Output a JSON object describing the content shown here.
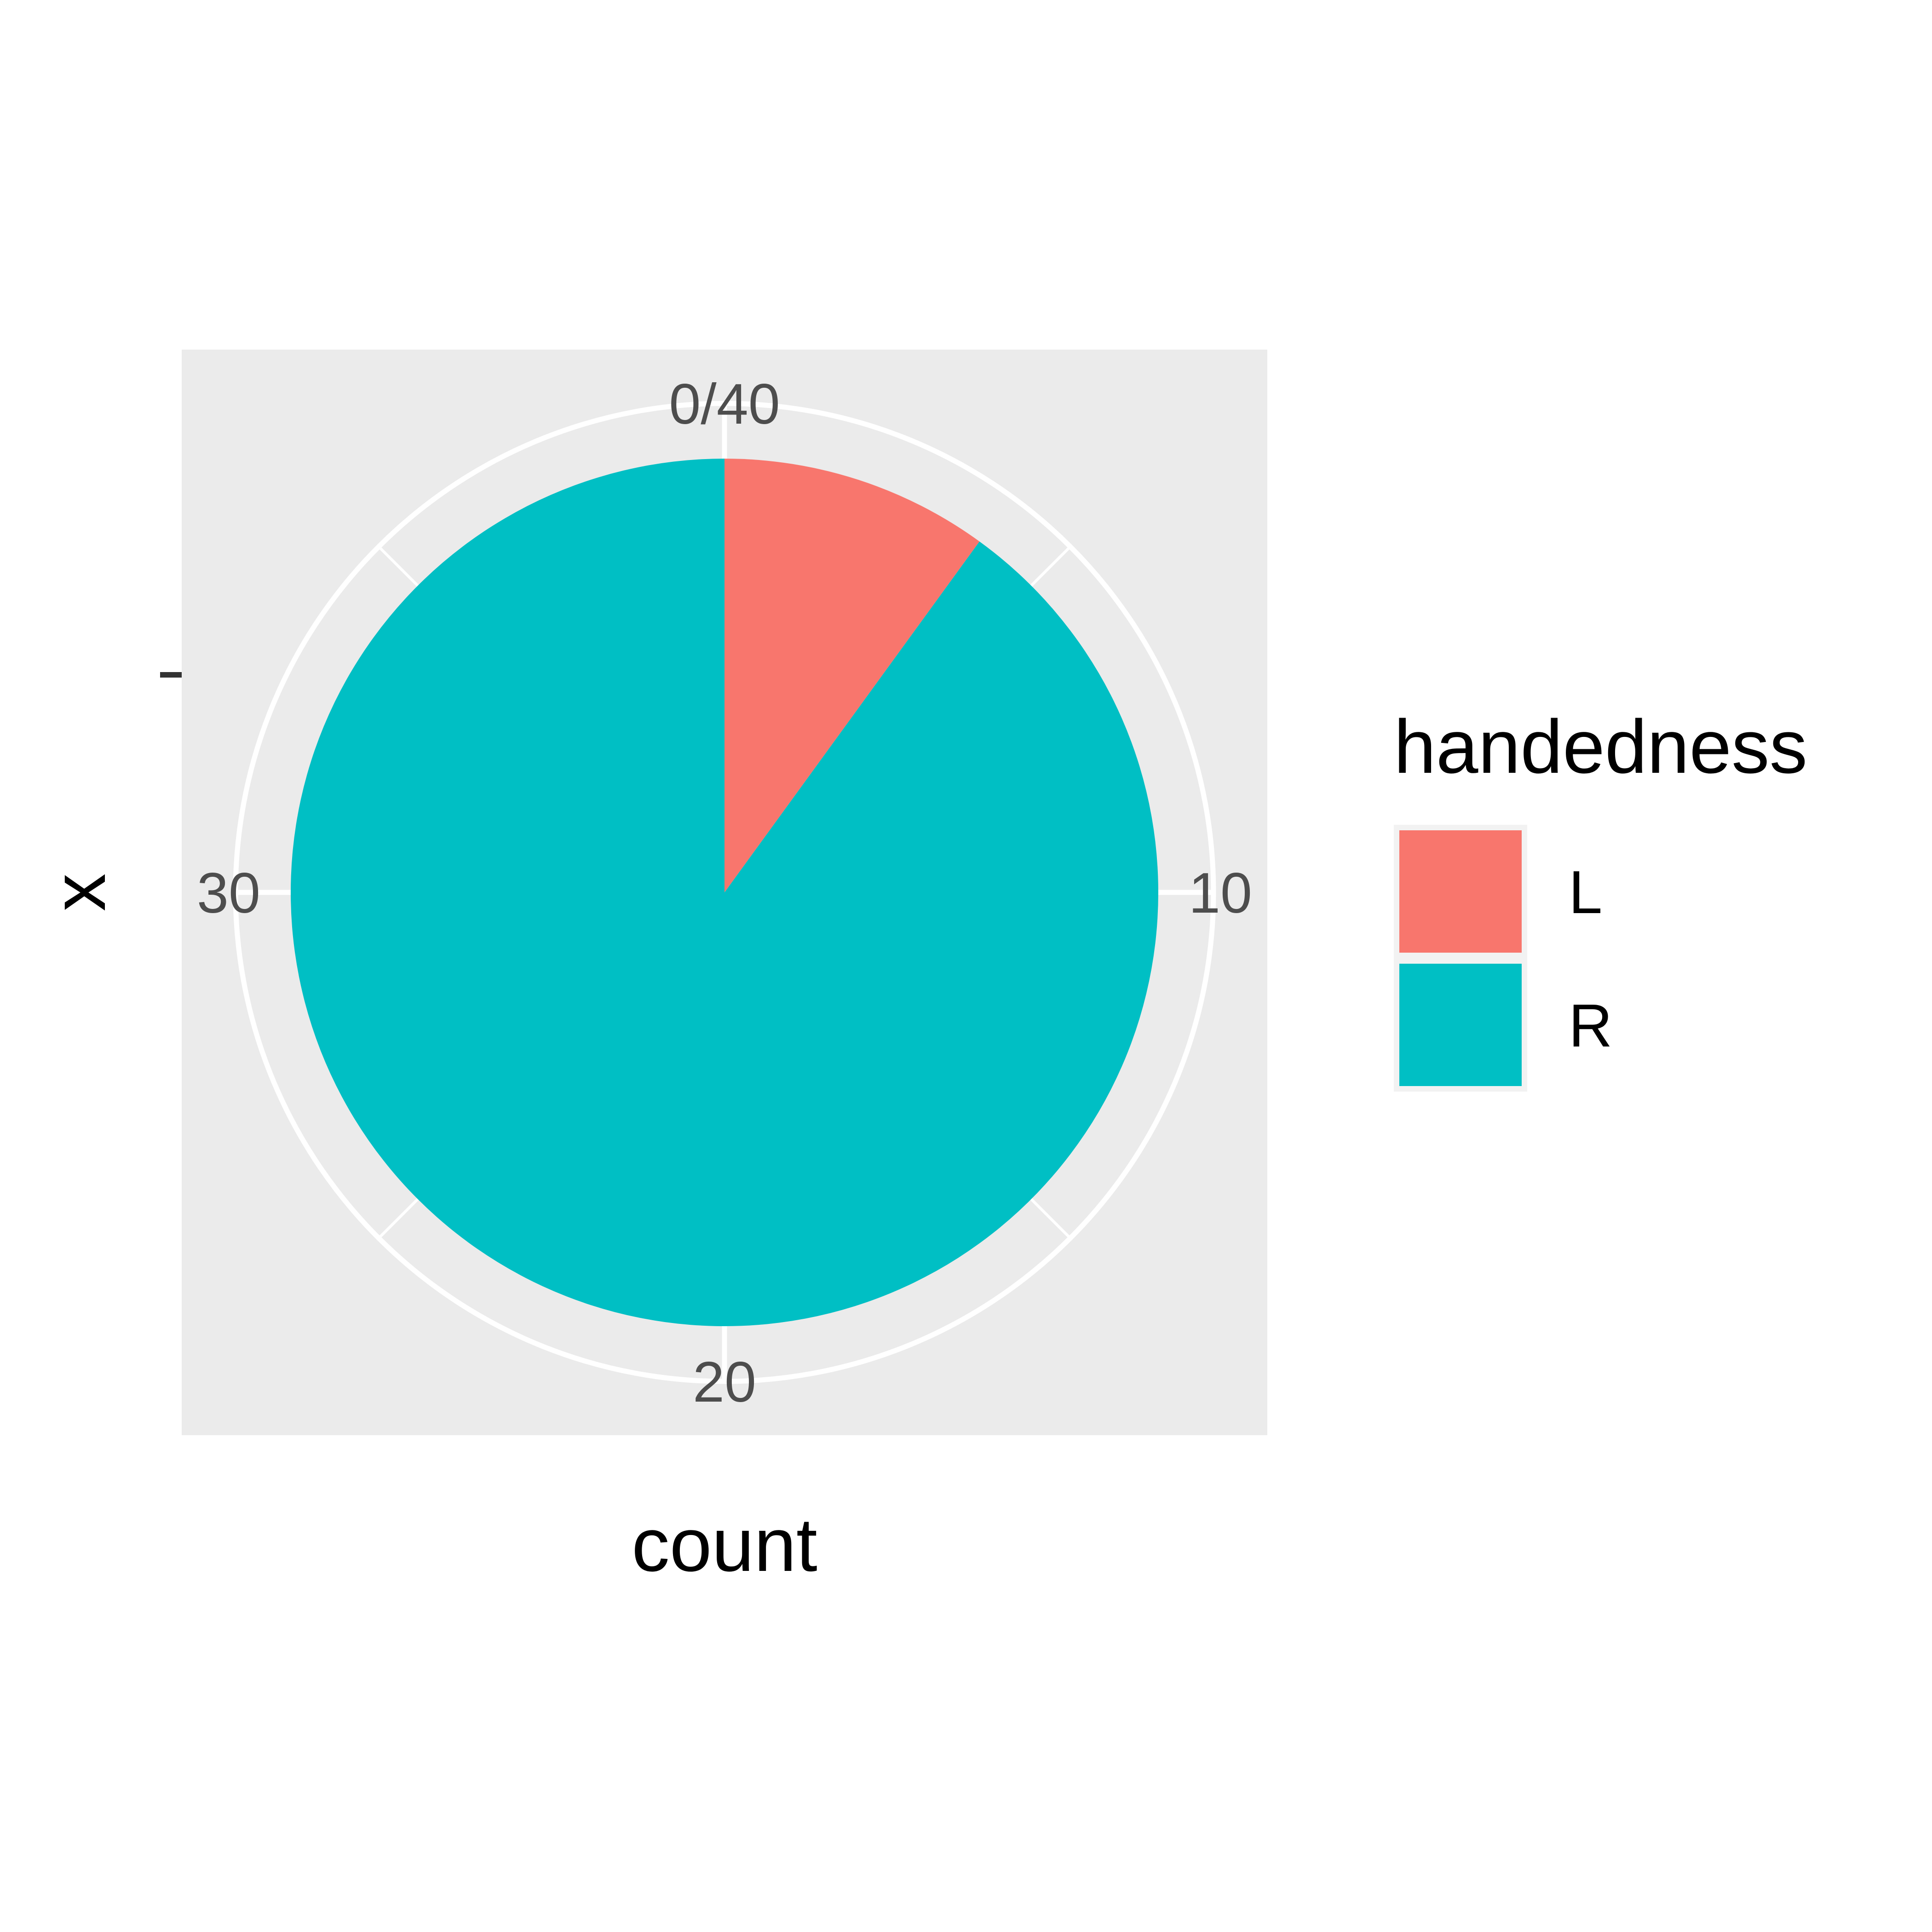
{
  "chart_data": {
    "type": "pie",
    "coord": "polar (bar chart with coord_polar, theta = count)",
    "xlabel": "count",
    "ylabel": "x",
    "theta_ticks": [
      0,
      10,
      20,
      30
    ],
    "theta_tick_labels": [
      "0/40",
      "10",
      "20",
      "30"
    ],
    "theta_range": [
      0,
      40
    ],
    "radial_tick_label": "",
    "legend": {
      "title": "handedness",
      "position": "right"
    },
    "series": [
      {
        "name": "L",
        "value": 4,
        "color": "#F8766D"
      },
      {
        "name": "R",
        "value": 36,
        "color": "#00BFC4"
      }
    ],
    "panel_background": "#EBEBEB",
    "grid_color": "#FFFFFF",
    "grid": true
  }
}
